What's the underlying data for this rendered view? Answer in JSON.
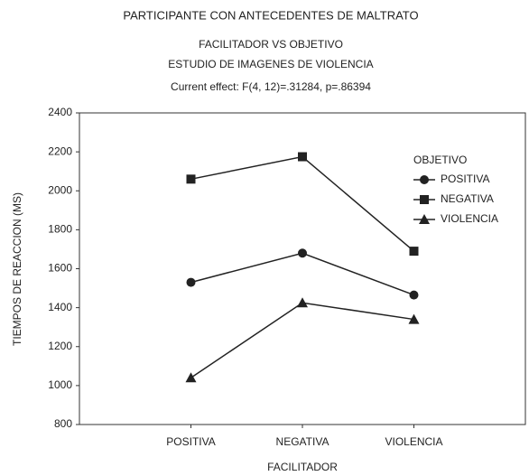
{
  "chart_data": {
    "type": "line",
    "title": "PARTICIPANTE CON ANTECEDENTES DE MALTRATO",
    "subtitles": [
      "FACILITADOR VS OBJETIVO",
      "ESTUDIO DE IMAGENES DE VIOLENCIA",
      "Current effect: F(4, 12)=.31284, p=.86394"
    ],
    "x_label": "FACILITADOR",
    "y_label": "TIEMPOS DE REACCION (MS)",
    "categories": [
      "POSITIVA",
      "NEGATIVA",
      "VIOLENCIA"
    ],
    "legend_title": "OBJETIVO",
    "series": [
      {
        "name": "POSITIVA",
        "color": "#222222",
        "marker": "circle",
        "values": [
          1530,
          1680,
          1465
        ]
      },
      {
        "name": "NEGATIVA",
        "color": "#222222",
        "marker": "square",
        "values": [
          2060,
          2175,
          1690
        ]
      },
      {
        "name": "VIOLENCIA",
        "color": "#222222",
        "marker": "triangle",
        "values": [
          1040,
          1425,
          1340
        ]
      }
    ],
    "ylim": [
      800,
      2400
    ],
    "yticks": [
      800,
      1000,
      1200,
      1400,
      1600,
      1800,
      2000,
      2200,
      2400
    ],
    "grid": false
  }
}
